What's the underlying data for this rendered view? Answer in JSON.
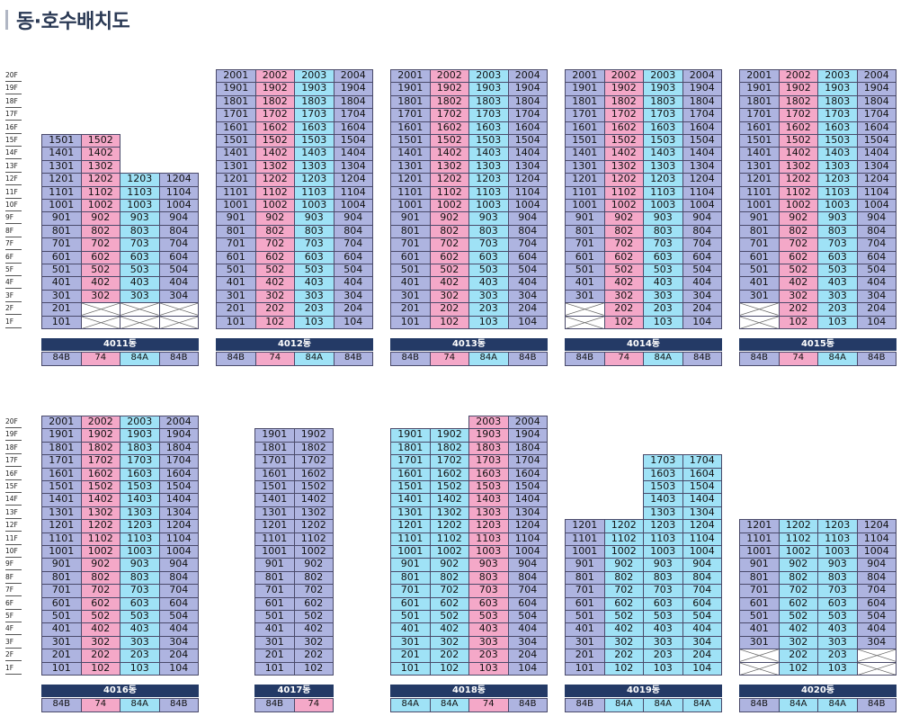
{
  "title": "동·호수배치도",
  "floors": [
    "20F",
    "19F",
    "18F",
    "17F",
    "16F",
    "15F",
    "14F",
    "13F",
    "12F",
    "11F",
    "10F",
    "9F",
    "8F",
    "7F",
    "6F",
    "5F",
    "4F",
    "3F",
    "2F",
    "1F"
  ],
  "colors": {
    "84B": "#aeb4e0",
    "74": "#f4a8c8",
    "84A": "#9fe2f6",
    "header": "#243a66"
  },
  "buildings": [
    {
      "name": "4011동",
      "lines": 4,
      "types": [
        "84B",
        "74",
        "84A",
        "84B"
      ],
      "tops": [
        15,
        15,
        12,
        12
      ],
      "bottom": 1,
      "empty": [
        "2-2",
        "2-3",
        "2-4",
        "1-2",
        "1-3",
        "1-4"
      ]
    },
    {
      "name": "4012동",
      "lines": 4,
      "types": [
        "84B",
        "74",
        "84A",
        "84B"
      ],
      "tops": [
        20,
        20,
        20,
        20
      ],
      "bottom": 1,
      "empty": []
    },
    {
      "name": "4013동",
      "lines": 4,
      "types": [
        "84B",
        "74",
        "84A",
        "84B"
      ],
      "tops": [
        20,
        20,
        20,
        20
      ],
      "bottom": 1,
      "empty": []
    },
    {
      "name": "4014동",
      "lines": 4,
      "types": [
        "84B",
        "74",
        "84A",
        "84B"
      ],
      "tops": [
        20,
        20,
        20,
        20
      ],
      "bottom": 1,
      "empty": [
        "2-1",
        "1-1"
      ]
    },
    {
      "name": "4015동",
      "lines": 4,
      "types": [
        "84B",
        "74",
        "84A",
        "84B"
      ],
      "tops": [
        20,
        20,
        20,
        20
      ],
      "bottom": 1,
      "empty": [
        "2-1",
        "1-1"
      ]
    },
    {
      "name": "4016동",
      "lines": 4,
      "types": [
        "84B",
        "74",
        "84A",
        "84B"
      ],
      "tops": [
        20,
        20,
        20,
        20
      ],
      "bottom": 1,
      "empty": []
    },
    {
      "name": "4017동",
      "lines": 2,
      "types": [
        "84B",
        "74"
      ],
      "typeColors": [
        "84B",
        "84B"
      ],
      "tops": [
        19,
        19
      ],
      "bottom": 1,
      "empty": []
    },
    {
      "name": "4018동",
      "lines": 4,
      "types": [
        "84A",
        "84A",
        "74",
        "84B"
      ],
      "tops": [
        19,
        19,
        20,
        20
      ],
      "bottom": 1,
      "empty": []
    },
    {
      "name": "4019동",
      "lines": 4,
      "types": [
        "84B",
        "84A",
        "84A",
        "84A"
      ],
      "tops": [
        12,
        12,
        17,
        17
      ],
      "bottom": 1,
      "empty": []
    },
    {
      "name": "4020동",
      "lines": 4,
      "types": [
        "84B",
        "84A",
        "84A",
        "84B"
      ],
      "tops": [
        12,
        12,
        12,
        12
      ],
      "bottom": 1,
      "empty": [
        "2-1",
        "2-4",
        "1-1",
        "1-4"
      ]
    }
  ]
}
